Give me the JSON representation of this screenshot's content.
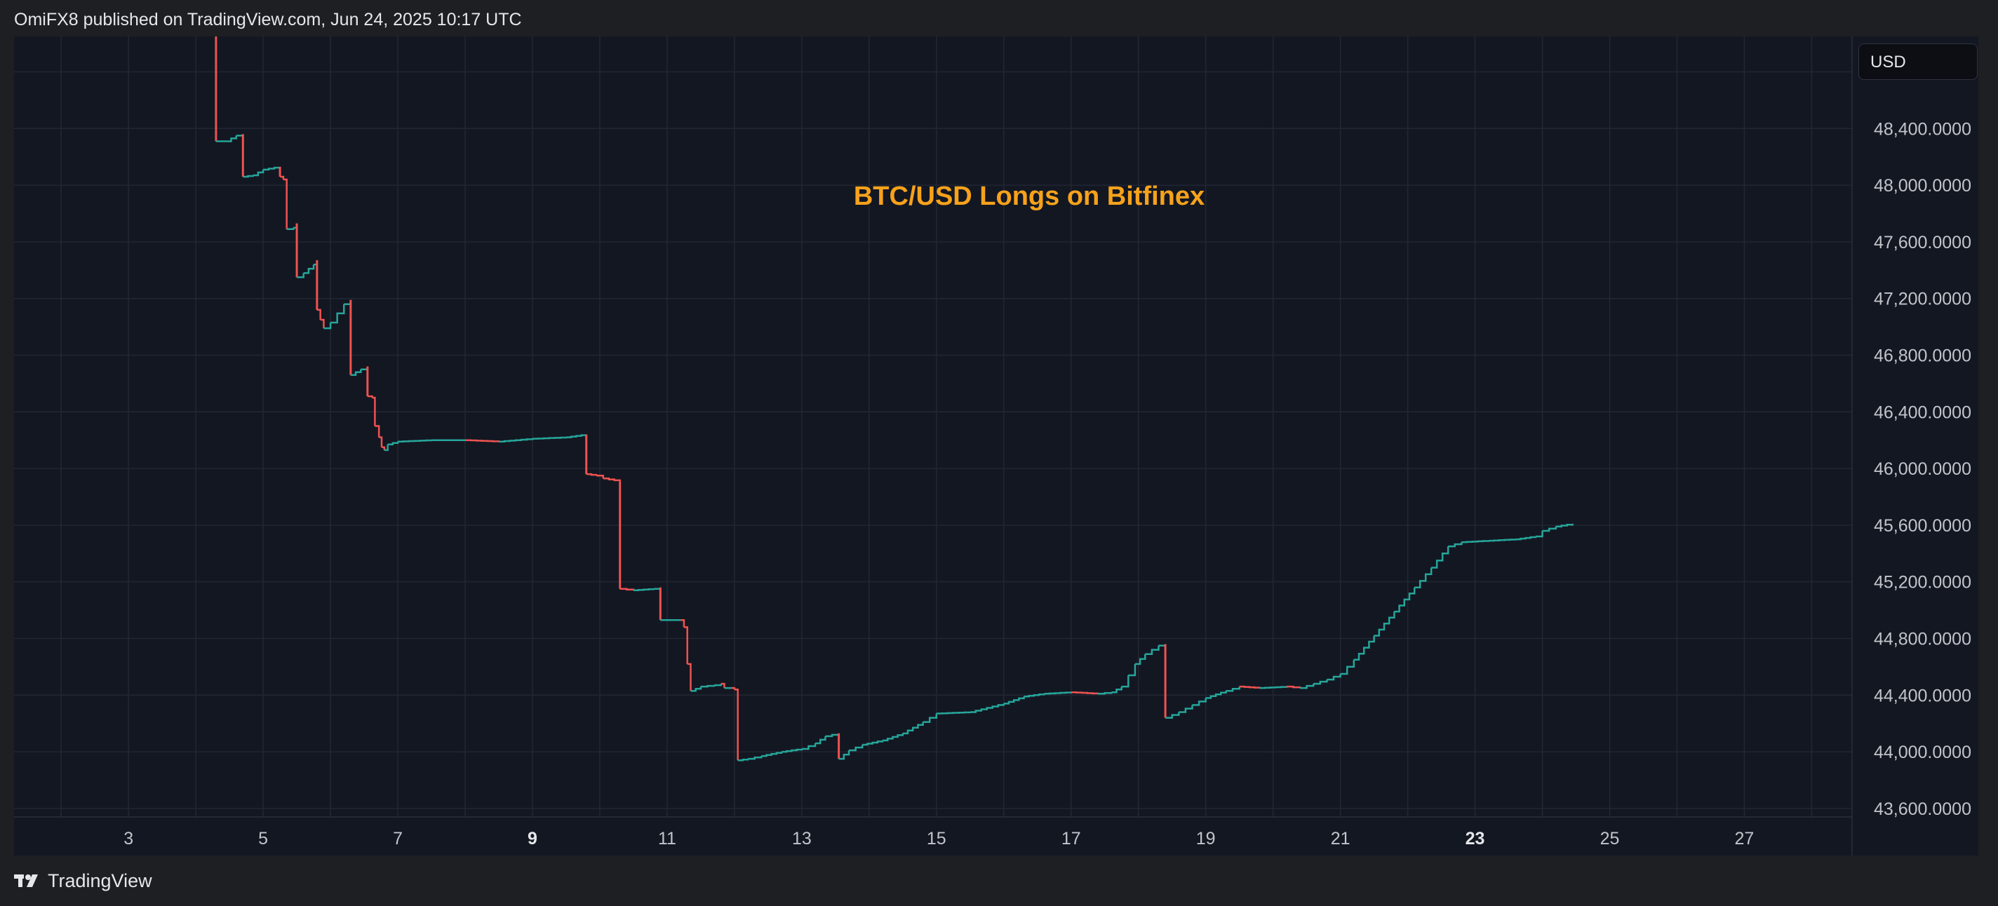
{
  "header": {
    "publisher_line": "OmiFX8 published on TradingView.com, Jun 24, 2025 10:17 UTC"
  },
  "price_scale": {
    "currency_label": "USD"
  },
  "footer": {
    "brand": "TradingView",
    "logo_icon": "tradingview-logo-icon"
  },
  "colors": {
    "background": "#131722",
    "grid": "#232733",
    "up": "#26a69a",
    "down": "#ef5350",
    "title": "#f7a21b",
    "axis_text": "#c2c4ca"
  },
  "chart_data": {
    "type": "line",
    "title": "BTC/USD Longs on Bitfinex",
    "xlabel": "",
    "ylabel": "",
    "xlim": [
      1.3,
      28.6
    ],
    "ylim": [
      43540,
      49050
    ],
    "x_ticks": [
      {
        "value": 3,
        "label": "3",
        "bold": false
      },
      {
        "value": 5,
        "label": "5",
        "bold": false
      },
      {
        "value": 7,
        "label": "7",
        "bold": false
      },
      {
        "value": 9,
        "label": "9",
        "bold": true
      },
      {
        "value": 11,
        "label": "11",
        "bold": false
      },
      {
        "value": 13,
        "label": "13",
        "bold": false
      },
      {
        "value": 15,
        "label": "15",
        "bold": false
      },
      {
        "value": 17,
        "label": "17",
        "bold": false
      },
      {
        "value": 19,
        "label": "19",
        "bold": false
      },
      {
        "value": 21,
        "label": "21",
        "bold": false
      },
      {
        "value": 23,
        "label": "23",
        "bold": true
      },
      {
        "value": 25,
        "label": "25",
        "bold": false
      },
      {
        "value": 27,
        "label": "27",
        "bold": false
      }
    ],
    "y_ticks": [
      {
        "value": 48400,
        "label": "48,400.0000"
      },
      {
        "value": 48000,
        "label": "48,000.0000"
      },
      {
        "value": 47600,
        "label": "47,600.0000"
      },
      {
        "value": 47200,
        "label": "47,200.0000"
      },
      {
        "value": 46800,
        "label": "46,800.0000"
      },
      {
        "value": 46400,
        "label": "46,400.0000"
      },
      {
        "value": 46000,
        "label": "46,000.0000"
      },
      {
        "value": 45600,
        "label": "45,600.0000"
      },
      {
        "value": 45200,
        "label": "45,200.0000"
      },
      {
        "value": 44800,
        "label": "44,800.0000"
      },
      {
        "value": 44400,
        "label": "44,400.0000"
      },
      {
        "value": 44000,
        "label": "44,000.0000"
      },
      {
        "value": 43600,
        "label": "43,600.0000"
      }
    ],
    "series": [
      {
        "name": "BTC/USD Longs on Bitfinex",
        "points": [
          [
            4.3,
            49100
          ],
          [
            4.3,
            48310
          ],
          [
            4.45,
            48310
          ],
          [
            4.6,
            48350
          ],
          [
            4.7,
            48360
          ],
          [
            4.7,
            48060
          ],
          [
            4.85,
            48070
          ],
          [
            5.0,
            48110
          ],
          [
            5.25,
            48130
          ],
          [
            5.25,
            48060
          ],
          [
            5.3,
            48040
          ],
          [
            5.35,
            47690
          ],
          [
            5.45,
            47700
          ],
          [
            5.5,
            47730
          ],
          [
            5.5,
            47350
          ],
          [
            5.6,
            47380
          ],
          [
            5.75,
            47440
          ],
          [
            5.8,
            47470
          ],
          [
            5.8,
            47120
          ],
          [
            5.85,
            47050
          ],
          [
            5.9,
            46990
          ],
          [
            6.0,
            47030
          ],
          [
            6.2,
            47160
          ],
          [
            6.3,
            47190
          ],
          [
            6.3,
            46660
          ],
          [
            6.45,
            46700
          ],
          [
            6.55,
            46720
          ],
          [
            6.55,
            46510
          ],
          [
            6.62,
            46500
          ],
          [
            6.66,
            46300
          ],
          [
            6.72,
            46220
          ],
          [
            6.76,
            46150
          ],
          [
            6.8,
            46130
          ],
          [
            6.85,
            46170
          ],
          [
            7.0,
            46190
          ],
          [
            7.5,
            46200
          ],
          [
            8.0,
            46200
          ],
          [
            8.5,
            46190
          ],
          [
            9.0,
            46210
          ],
          [
            9.5,
            46220
          ],
          [
            9.8,
            46240
          ],
          [
            9.8,
            45960
          ],
          [
            9.95,
            45950
          ],
          [
            10.05,
            45930
          ],
          [
            10.3,
            45910
          ],
          [
            10.3,
            45150
          ],
          [
            10.5,
            45140
          ],
          [
            10.8,
            45150
          ],
          [
            10.9,
            45160
          ],
          [
            10.9,
            44930
          ],
          [
            11.2,
            44930
          ],
          [
            11.25,
            44880
          ],
          [
            11.3,
            44620
          ],
          [
            11.35,
            44430
          ],
          [
            11.5,
            44460
          ],
          [
            11.7,
            44470
          ],
          [
            11.8,
            44480
          ],
          [
            11.85,
            44450
          ],
          [
            11.95,
            44450
          ],
          [
            12.0,
            44440
          ],
          [
            12.05,
            43940
          ],
          [
            12.2,
            43950
          ],
          [
            12.4,
            43970
          ],
          [
            12.7,
            44000
          ],
          [
            13.0,
            44020
          ],
          [
            13.2,
            44060
          ],
          [
            13.35,
            44110
          ],
          [
            13.55,
            44130
          ],
          [
            13.55,
            43950
          ],
          [
            13.7,
            44010
          ],
          [
            13.9,
            44050
          ],
          [
            14.2,
            44080
          ],
          [
            14.5,
            44130
          ],
          [
            14.8,
            44210
          ],
          [
            15.0,
            44270
          ],
          [
            15.5,
            44280
          ],
          [
            16.0,
            44340
          ],
          [
            16.3,
            44390
          ],
          [
            16.6,
            44410
          ],
          [
            17.0,
            44420
          ],
          [
            17.4,
            44410
          ],
          [
            17.6,
            44420
          ],
          [
            17.75,
            44460
          ],
          [
            17.85,
            44540
          ],
          [
            17.95,
            44620
          ],
          [
            18.1,
            44690
          ],
          [
            18.3,
            44750
          ],
          [
            18.4,
            44760
          ],
          [
            18.4,
            44240
          ],
          [
            18.6,
            44280
          ],
          [
            18.8,
            44330
          ],
          [
            19.0,
            44380
          ],
          [
            19.3,
            44430
          ],
          [
            19.5,
            44460
          ],
          [
            19.8,
            44450
          ],
          [
            20.2,
            44460
          ],
          [
            20.4,
            44450
          ],
          [
            20.6,
            44480
          ],
          [
            20.8,
            44510
          ],
          [
            21.0,
            44550
          ],
          [
            21.2,
            44650
          ],
          [
            21.5,
            44820
          ],
          [
            21.8,
            44990
          ],
          [
            22.1,
            45160
          ],
          [
            22.35,
            45300
          ],
          [
            22.6,
            45450
          ],
          [
            22.8,
            45480
          ],
          [
            23.2,
            45490
          ],
          [
            23.6,
            45500
          ],
          [
            23.9,
            45520
          ],
          [
            24.0,
            45560
          ],
          [
            24.2,
            45590
          ],
          [
            24.45,
            45610
          ]
        ]
      }
    ]
  }
}
